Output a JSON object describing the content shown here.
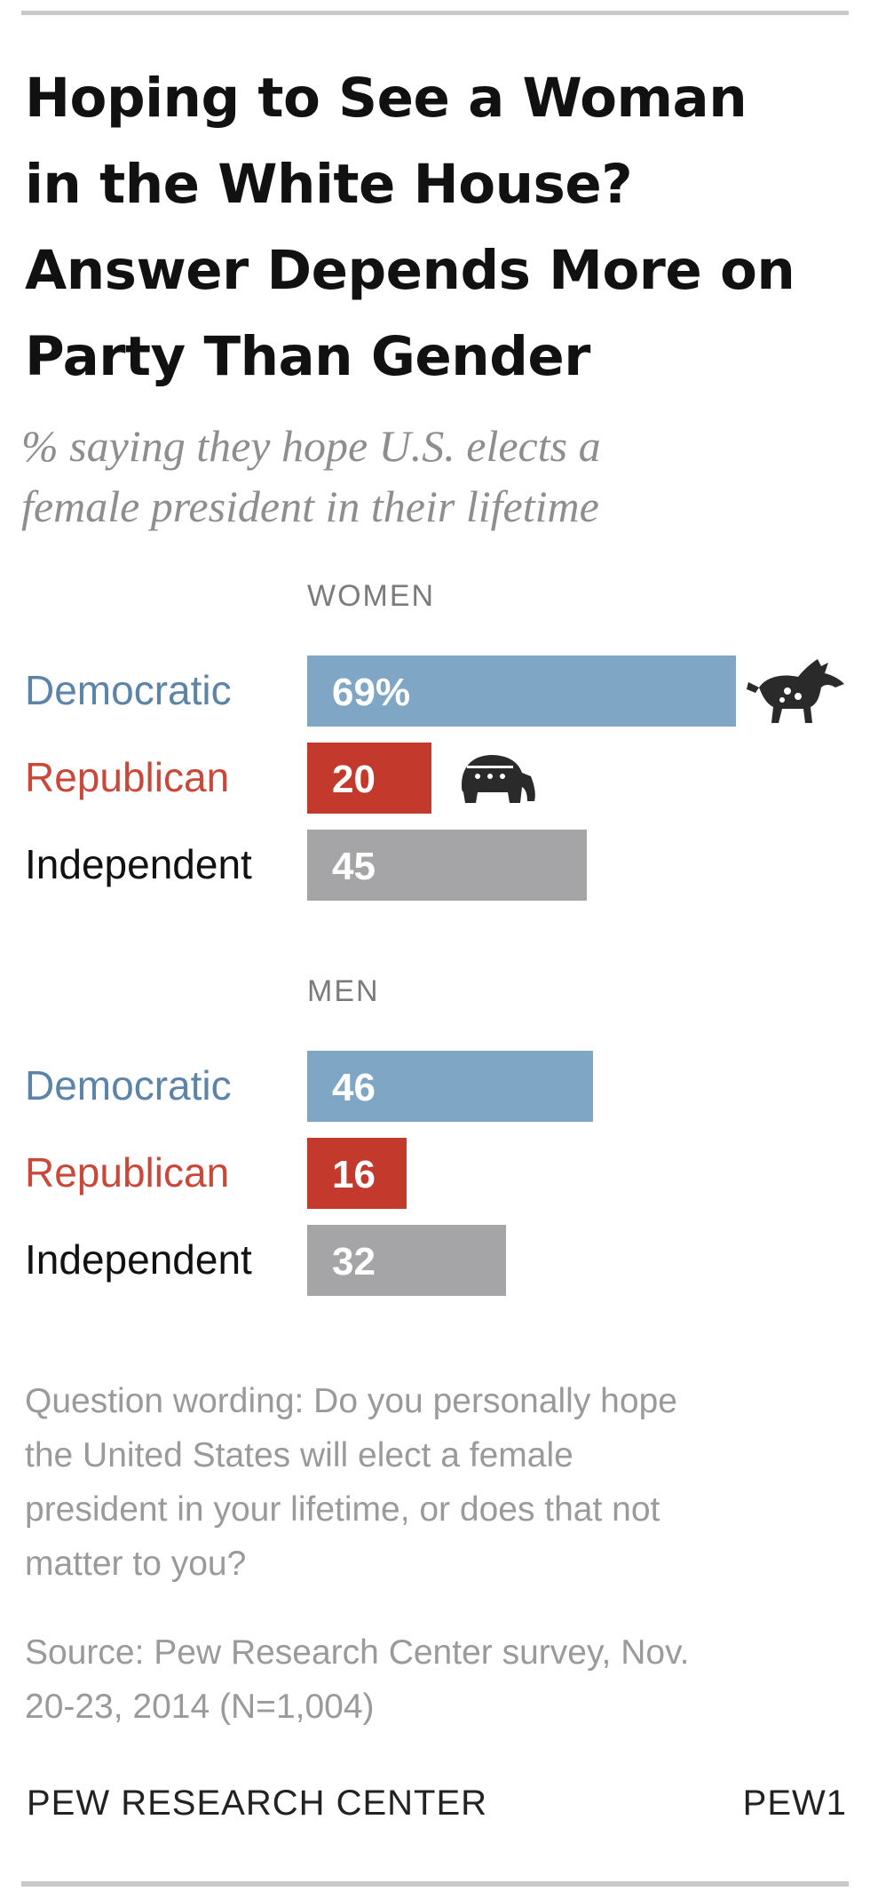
{
  "title_lines": [
    "Hoping to See a Woman",
    "in the White House?",
    "Answer Depends More on",
    "Party Than Gender"
  ],
  "subtitle_lines": [
    "% saying they hope U.S. elects a",
    "female president in their lifetime"
  ],
  "chart_data": {
    "type": "bar",
    "orientation": "horizontal",
    "title": "Hoping to See a Woman in the White House? Answer Depends More on Party Than Gender",
    "subtitle": "% saying they hope U.S. elects a female president in their lifetime",
    "xlim": [
      0,
      100
    ],
    "unit": "%",
    "groups": [
      {
        "name": "WOMEN",
        "bars": [
          {
            "category": "Democratic",
            "value": 69,
            "label": "69%",
            "color": "#7fa6c4",
            "label_color": "#5b84a8",
            "icon": "democratic-donkey-icon"
          },
          {
            "category": "Republican",
            "value": 20,
            "label": "20",
            "color": "#c33a2c",
            "label_color": "#c9483a",
            "icon": "republican-elephant-icon"
          },
          {
            "category": "Independent",
            "value": 45,
            "label": "45",
            "color": "#a5a5a8",
            "label_color": "#111111"
          }
        ]
      },
      {
        "name": "MEN",
        "bars": [
          {
            "category": "Democratic",
            "value": 46,
            "label": "46",
            "color": "#7fa6c4",
            "label_color": "#5b84a8"
          },
          {
            "category": "Republican",
            "value": 16,
            "label": "16",
            "color": "#c33a2c",
            "label_color": "#c9483a"
          },
          {
            "category": "Independent",
            "value": 32,
            "label": "32",
            "color": "#a5a5a8",
            "label_color": "#111111"
          }
        ]
      }
    ]
  },
  "note_lines": [
    "Question wording: Do you personally hope",
    "the United States will elect a female",
    "president in your lifetime, or does that not",
    "matter to you?"
  ],
  "source_lines": [
    "Source: Pew Research Center survey, Nov.",
    "20-23, 2014 (N=1,004)"
  ],
  "footer": {
    "org": "PEW RESEARCH CENTER",
    "code": "PEW1"
  }
}
